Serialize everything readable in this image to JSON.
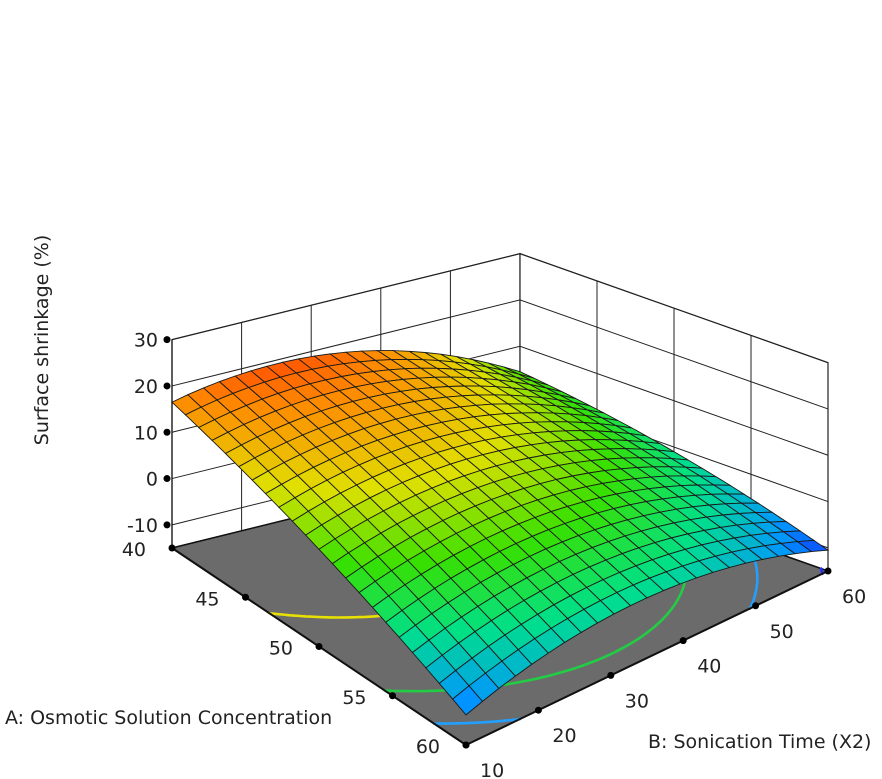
{
  "chart_data": {
    "type": "surface3d",
    "zlabel": "Surface shrinkage (%)",
    "xlabel": "A: Osmotic Solution Concentration",
    "ylabel": "B: Sonication Time (X2)",
    "x_ticks": [
      "40",
      "45",
      "50",
      "55",
      "60"
    ],
    "y_ticks": [
      "10",
      "20",
      "30",
      "40",
      "50",
      "60"
    ],
    "z_ticks": [
      "-10",
      "0",
      "10",
      "20",
      "30"
    ],
    "xlim": [
      40,
      60
    ],
    "ylim": [
      10,
      60
    ],
    "zlim": [
      -15,
      30
    ],
    "grid": true,
    "surface_samples": [
      {
        "A": 40,
        "B": 10,
        "z": 20.5
      },
      {
        "A": 40,
        "B": 35,
        "z": 22.5
      },
      {
        "A": 40,
        "B": 60,
        "z": 5
      },
      {
        "A": 50,
        "B": 35,
        "z": 10
      },
      {
        "A": 60,
        "B": 10,
        "z": -15
      },
      {
        "A": 60,
        "B": 60,
        "z": -5
      }
    ],
    "contour_levels": [
      {
        "level": 20,
        "color": "#e8e000"
      },
      {
        "level": 10,
        "color": "#e8e000"
      },
      {
        "level": 0,
        "color": "#22cc44"
      },
      {
        "level": -5,
        "color": "#22a0ff"
      },
      {
        "level": -10,
        "color": "#1c2cff"
      }
    ],
    "colormap": [
      "#1d00ff",
      "#0096ff",
      "#00e08a",
      "#38e000",
      "#e0e000",
      "#ff8800",
      "#ff0000"
    ]
  }
}
